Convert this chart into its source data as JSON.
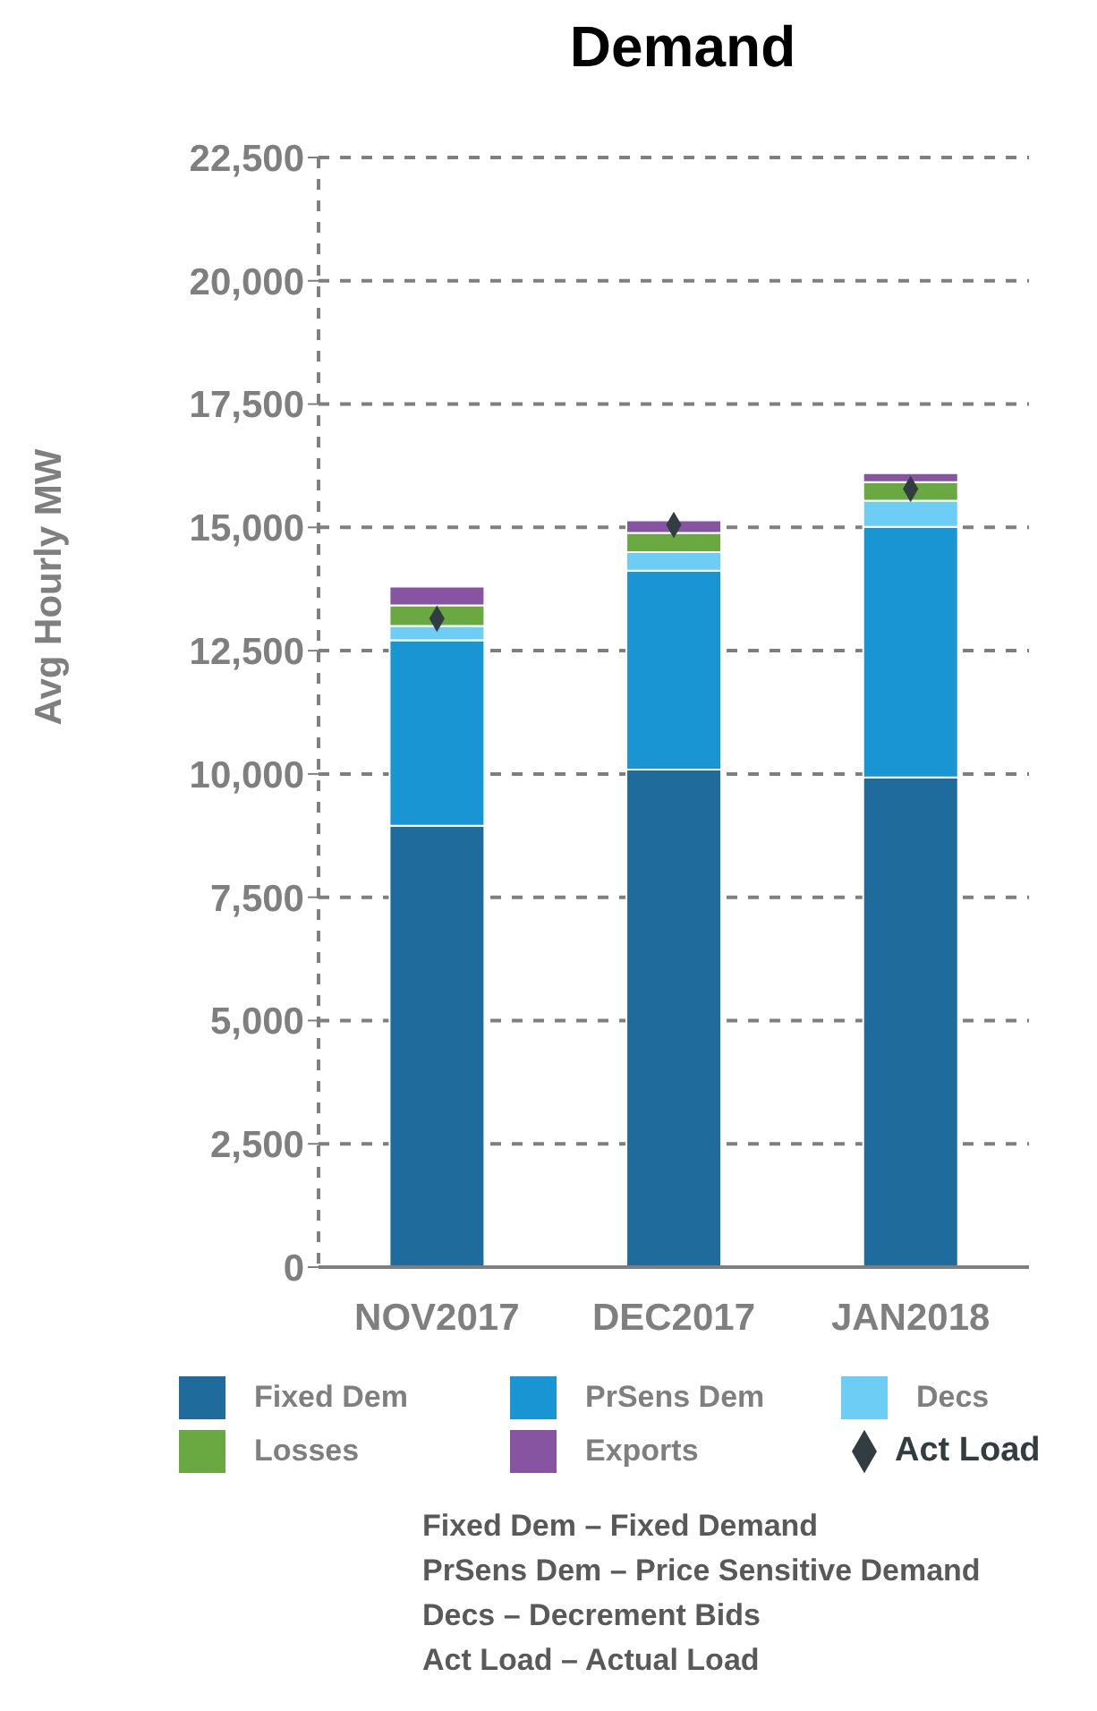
{
  "chart_data": {
    "type": "bar",
    "title": "Demand",
    "ylabel": "Avg Hourly MW",
    "categories": [
      "NOV2017",
      "DEC2017",
      "JAN2018"
    ],
    "stacked": true,
    "series": [
      {
        "name": "Fixed Dem",
        "color": "#1f6b9c",
        "values": [
          8950,
          10090,
          9930
        ]
      },
      {
        "name": "PrSens Dem",
        "color": "#1995d3",
        "values": [
          3760,
          4030,
          5080
        ]
      },
      {
        "name": "Decs",
        "color": "#6dcdf5",
        "values": [
          290,
          380,
          530
        ]
      },
      {
        "name": "Losses",
        "color": "#6aa842",
        "values": [
          420,
          390,
          380
        ]
      },
      {
        "name": "Exports",
        "color": "#8654a1",
        "values": [
          380,
          250,
          180
        ]
      },
      {
        "name": "Act Load",
        "type": "scatter",
        "color": "#313d40",
        "values": [
          13150,
          15050,
          15780
        ]
      }
    ],
    "ylim": [
      0,
      22500
    ],
    "yticks": [
      {
        "value": 0,
        "label": "0"
      },
      {
        "value": 2500,
        "label": "2,500"
      },
      {
        "value": 5000,
        "label": "5,000"
      },
      {
        "value": 7500,
        "label": "7,500"
      },
      {
        "value": 10000,
        "label": "10,000"
      },
      {
        "value": 12500,
        "label": "12,500"
      },
      {
        "value": 15000,
        "label": "15,000"
      },
      {
        "value": 17500,
        "label": "17,500"
      },
      {
        "value": 20000,
        "label": "20,000"
      },
      {
        "value": 22500,
        "label": "22,500"
      }
    ],
    "grid": "y",
    "legend": "bottom",
    "marker": "diamond",
    "annotations": [
      "Fixed Dem – Fixed Demand",
      "PrSens Dem – Price Sensitive Demand",
      "Decs – Decrement Bids",
      "Act Load – Actual Load"
    ]
  }
}
